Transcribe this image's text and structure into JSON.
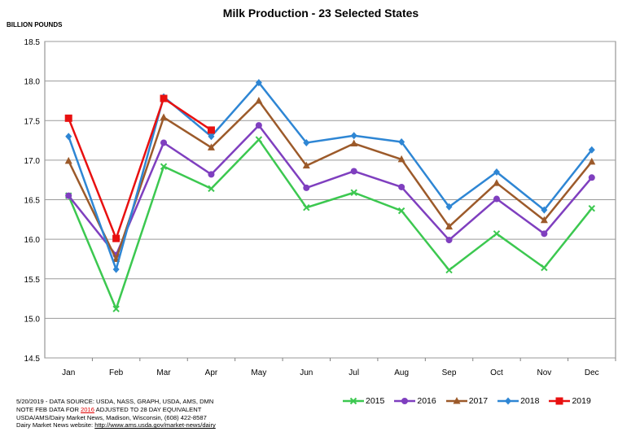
{
  "chart_data": {
    "type": "line",
    "title": "Milk Production - 23 Selected States",
    "ylabel": "BILLION POUNDS",
    "xlabel": "",
    "categories": [
      "Jan",
      "Feb",
      "Mar",
      "Apr",
      "May",
      "Jun",
      "Jul",
      "Aug",
      "Sep",
      "Oct",
      "Nov",
      "Dec"
    ],
    "ylim": [
      14.5,
      18.5
    ],
    "yticks": [
      "14.5",
      "15.0",
      "15.5",
      "16.0",
      "16.5",
      "17.0",
      "17.5",
      "18.0",
      "18.5"
    ],
    "grid": true,
    "legend_position": "bottom-right",
    "series": [
      {
        "name": "2015",
        "color": "#3cc850",
        "marker": "x",
        "values": [
          16.55,
          15.12,
          16.92,
          16.64,
          17.26,
          16.4,
          16.59,
          16.36,
          15.61,
          16.07,
          15.64,
          16.39
        ]
      },
      {
        "name": "2016",
        "color": "#7f3fbf",
        "marker": "circle",
        "values": [
          16.55,
          15.8,
          17.22,
          16.82,
          17.44,
          16.65,
          16.86,
          16.66,
          15.99,
          16.51,
          16.07,
          16.78
        ]
      },
      {
        "name": "2017",
        "color": "#9c5a2a",
        "marker": "triangle",
        "values": [
          16.99,
          15.75,
          17.54,
          17.16,
          17.75,
          16.93,
          17.21,
          17.01,
          16.16,
          16.71,
          16.24,
          16.98
        ]
      },
      {
        "name": "2018",
        "color": "#2e86d4",
        "marker": "diamond",
        "values": [
          17.3,
          15.62,
          17.8,
          17.3,
          17.98,
          17.22,
          17.31,
          17.23,
          16.41,
          16.85,
          16.37,
          17.13
        ]
      },
      {
        "name": "2019",
        "color": "#e81010",
        "marker": "square",
        "values": [
          17.53,
          16.01,
          17.78,
          17.38,
          null,
          null,
          null,
          null,
          null,
          null,
          null,
          null
        ]
      }
    ]
  },
  "footnote": {
    "line1": "5/20/2019 - DATA SOURCE: USDA, NASS, GRAPH, USDA, AMS, DMN",
    "line2_pre": "NOTE FEB DATA FOR ",
    "line2_year": "2016",
    "line2_post": " ADJUSTED TO 28 DAY EQUIVALENT",
    "line3": "USDA/AMS/Dairy Market News, Madison, Wisconsin, (608) 422-8587",
    "line4_pre": "Dairy Market News website: ",
    "line4_url": "http://www.ams.usda.gov/market-news/dairy"
  }
}
